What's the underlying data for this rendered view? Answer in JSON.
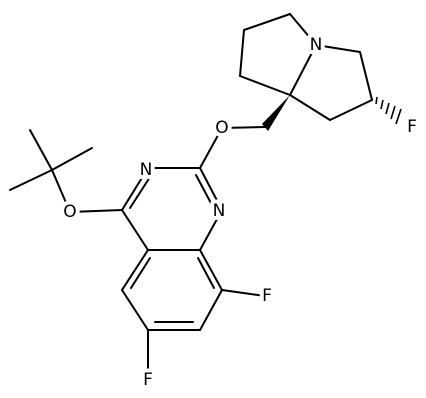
{
  "labels": [
    "N",
    "O",
    "N",
    "N",
    "O",
    "F",
    "F",
    "F"
  ]
}
